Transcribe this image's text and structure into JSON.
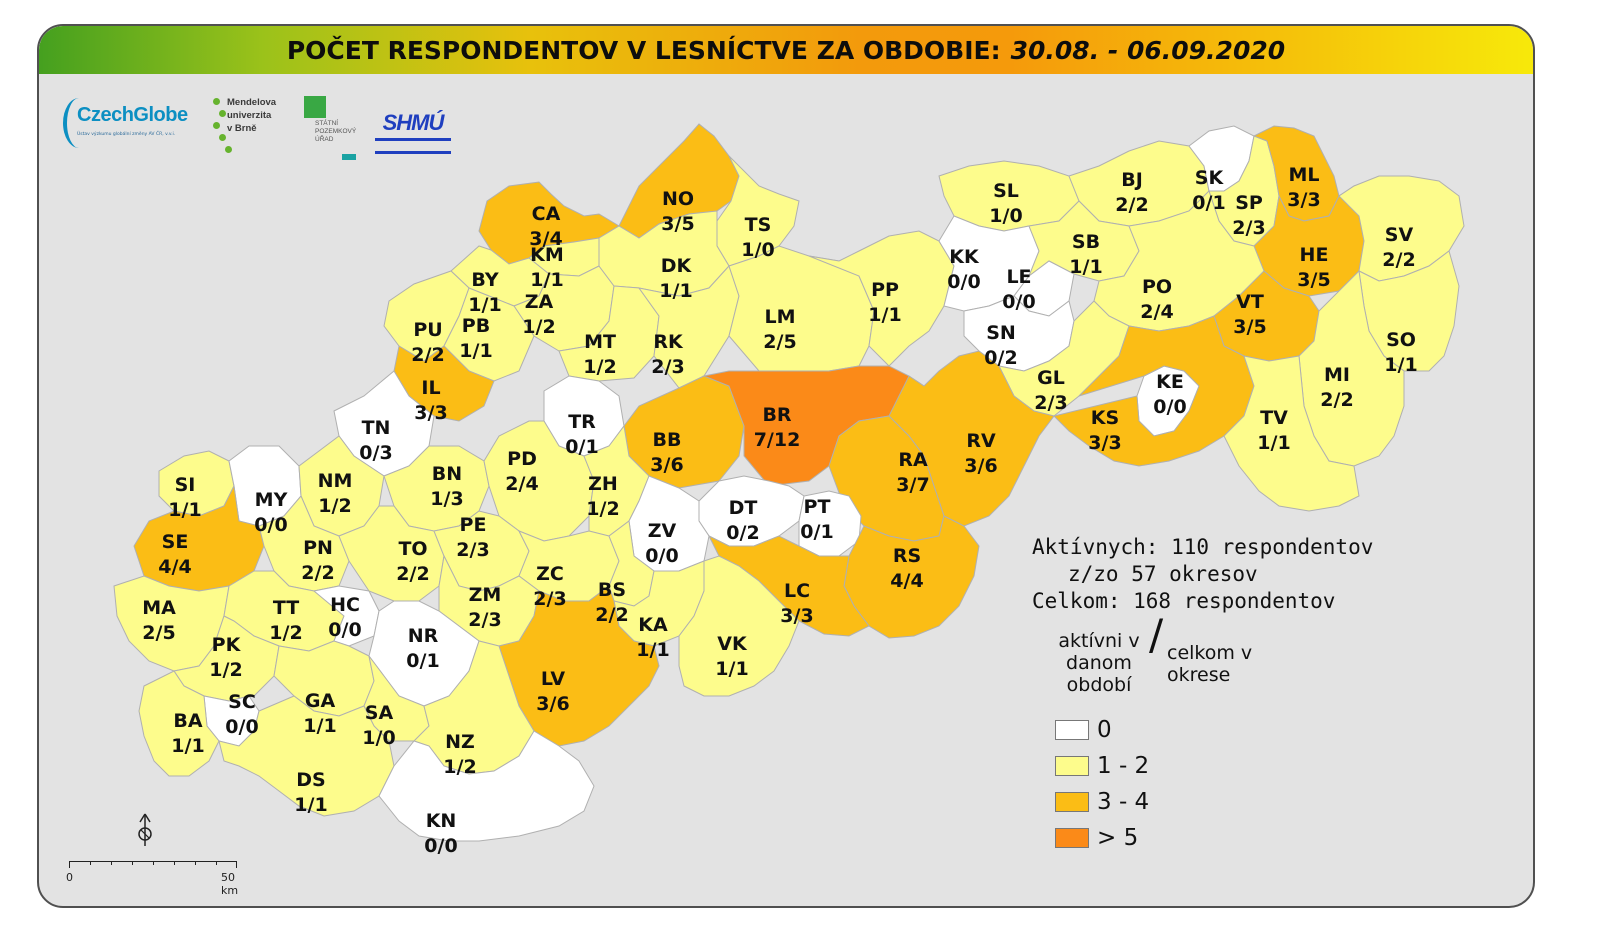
{
  "title": {
    "main": "POČET RESPONDENTOV V LESNÍCTVE ZA OBDOBIE:",
    "period": "30.08. - 06.09.2020"
  },
  "logos": {
    "czechglobe": "CzechGlobe",
    "czechglobe_sub": "Ústav výzkumu globální změny AV ČR, v.v.i.",
    "mendelu": [
      "Mendelova",
      "univerzita",
      "v Brně"
    ],
    "spu": [
      "STÁTNÍ",
      "POZEMKOVÝ",
      "ÚŘAD"
    ],
    "shmu": "SHMÚ"
  },
  "colors": {
    "zero": "#ffffff",
    "low": "#fdfc8c",
    "mid": "#fbbd15",
    "high": "#fb8a18",
    "background": "#e3e3e3",
    "border": "#b0b0b0"
  },
  "districts": [
    {
      "code": "CA",
      "value": "3/4",
      "level": "mid"
    },
    {
      "code": "NO",
      "value": "3/5",
      "level": "mid"
    },
    {
      "code": "TS",
      "value": "1/0",
      "level": "low"
    },
    {
      "code": "KM",
      "value": "1/1",
      "level": "low"
    },
    {
      "code": "BY",
      "value": "1/1",
      "level": "low"
    },
    {
      "code": "ZA",
      "value": "1/2",
      "level": "low"
    },
    {
      "code": "DK",
      "value": "1/1",
      "level": "low"
    },
    {
      "code": "PU",
      "value": "2/2",
      "level": "low"
    },
    {
      "code": "PB",
      "value": "1/1",
      "level": "low"
    },
    {
      "code": "MT",
      "value": "1/2",
      "level": "low"
    },
    {
      "code": "RK",
      "value": "2/3",
      "level": "low"
    },
    {
      "code": "LM",
      "value": "2/5",
      "level": "low"
    },
    {
      "code": "IL",
      "value": "3/3",
      "level": "mid"
    },
    {
      "code": "TN",
      "value": "0/3",
      "level": "zero"
    },
    {
      "code": "TR",
      "value": "0/1",
      "level": "zero"
    },
    {
      "code": "BB",
      "value": "3/6",
      "level": "mid"
    },
    {
      "code": "BR",
      "value": "7/12",
      "level": "high"
    },
    {
      "code": "PP",
      "value": "1/1",
      "level": "low"
    },
    {
      "code": "SL",
      "value": "1/0",
      "level": "low"
    },
    {
      "code": "BJ",
      "value": "2/2",
      "level": "low"
    },
    {
      "code": "SK",
      "value": "0/1",
      "level": "zero"
    },
    {
      "code": "SP",
      "value": "2/3",
      "level": "low"
    },
    {
      "code": "ML",
      "value": "3/3",
      "level": "mid"
    },
    {
      "code": "KK",
      "value": "0/0",
      "level": "zero"
    },
    {
      "code": "SB",
      "value": "1/1",
      "level": "low"
    },
    {
      "code": "LE",
      "value": "0/0",
      "level": "zero"
    },
    {
      "code": "HE",
      "value": "3/5",
      "level": "mid"
    },
    {
      "code": "SV",
      "value": "2/2",
      "level": "low"
    },
    {
      "code": "PO",
      "value": "2/4",
      "level": "low"
    },
    {
      "code": "VT",
      "value": "3/5",
      "level": "mid"
    },
    {
      "code": "SN",
      "value": "0/2",
      "level": "zero"
    },
    {
      "code": "SO",
      "value": "1/1",
      "level": "low"
    },
    {
      "code": "MI",
      "value": "2/2",
      "level": "low"
    },
    {
      "code": "GL",
      "value": "2/3",
      "level": "low"
    },
    {
      "code": "KE",
      "value": "0/0",
      "level": "zero"
    },
    {
      "code": "KS",
      "value": "3/3",
      "level": "mid"
    },
    {
      "code": "TV",
      "value": "1/1",
      "level": "low"
    },
    {
      "code": "RV",
      "value": "3/6",
      "level": "mid"
    },
    {
      "code": "RA",
      "value": "3/7",
      "level": "mid"
    },
    {
      "code": "SI",
      "value": "1/1",
      "level": "low"
    },
    {
      "code": "MY",
      "value": "0/0",
      "level": "zero"
    },
    {
      "code": "NM",
      "value": "1/2",
      "level": "low"
    },
    {
      "code": "BN",
      "value": "1/3",
      "level": "low"
    },
    {
      "code": "PD",
      "value": "2/4",
      "level": "low"
    },
    {
      "code": "ZH",
      "value": "1/2",
      "level": "low"
    },
    {
      "code": "DT",
      "value": "0/2",
      "level": "zero"
    },
    {
      "code": "PT",
      "value": "0/1",
      "level": "zero"
    },
    {
      "code": "SE",
      "value": "4/4",
      "level": "mid"
    },
    {
      "code": "PN",
      "value": "2/2",
      "level": "low"
    },
    {
      "code": "TO",
      "value": "2/2",
      "level": "low"
    },
    {
      "code": "PE",
      "value": "2/3",
      "level": "low"
    },
    {
      "code": "ZV",
      "value": "0/0",
      "level": "zero"
    },
    {
      "code": "ZC",
      "value": "2/3",
      "level": "low"
    },
    {
      "code": "BS",
      "value": "2/2",
      "level": "low"
    },
    {
      "code": "RS",
      "value": "4/4",
      "level": "mid"
    },
    {
      "code": "LC",
      "value": "3/3",
      "level": "mid"
    },
    {
      "code": "MA",
      "value": "2/5",
      "level": "low"
    },
    {
      "code": "TT",
      "value": "1/2",
      "level": "low"
    },
    {
      "code": "HC",
      "value": "0/0",
      "level": "zero"
    },
    {
      "code": "ZM",
      "value": "2/3",
      "level": "low"
    },
    {
      "code": "KA",
      "value": "1/1",
      "level": "low"
    },
    {
      "code": "PK",
      "value": "1/2",
      "level": "low"
    },
    {
      "code": "NR",
      "value": "0/1",
      "level": "zero"
    },
    {
      "code": "VK",
      "value": "1/1",
      "level": "low"
    },
    {
      "code": "LV",
      "value": "3/6",
      "level": "mid"
    },
    {
      "code": "SC",
      "value": "0/0",
      "level": "zero"
    },
    {
      "code": "GA",
      "value": "1/1",
      "level": "low"
    },
    {
      "code": "SA",
      "value": "1/0",
      "level": "low"
    },
    {
      "code": "BA",
      "value": "1/1",
      "level": "low"
    },
    {
      "code": "NZ",
      "value": "1/2",
      "level": "low"
    },
    {
      "code": "DS",
      "value": "1/1",
      "level": "low"
    },
    {
      "code": "KN",
      "value": "0/0",
      "level": "zero"
    }
  ],
  "stats": {
    "line1": "Aktívnych: 110 respondentov",
    "line2": "z/zo 57 okresov",
    "line3": "Celkom: 168 respondentov"
  },
  "legend": {
    "active": "aktívni v danom období",
    "slash": "/",
    "total": "celkom v okrese",
    "items": [
      {
        "label": "0",
        "color": "#ffffff"
      },
      {
        "label": "1 - 2",
        "color": "#fdfc8c"
      },
      {
        "label": "3 - 4",
        "color": "#fbbd15"
      },
      {
        "label": "> 5",
        "color": "#fb8a18"
      }
    ]
  },
  "scale": {
    "start": "0",
    "end": "50 km"
  }
}
